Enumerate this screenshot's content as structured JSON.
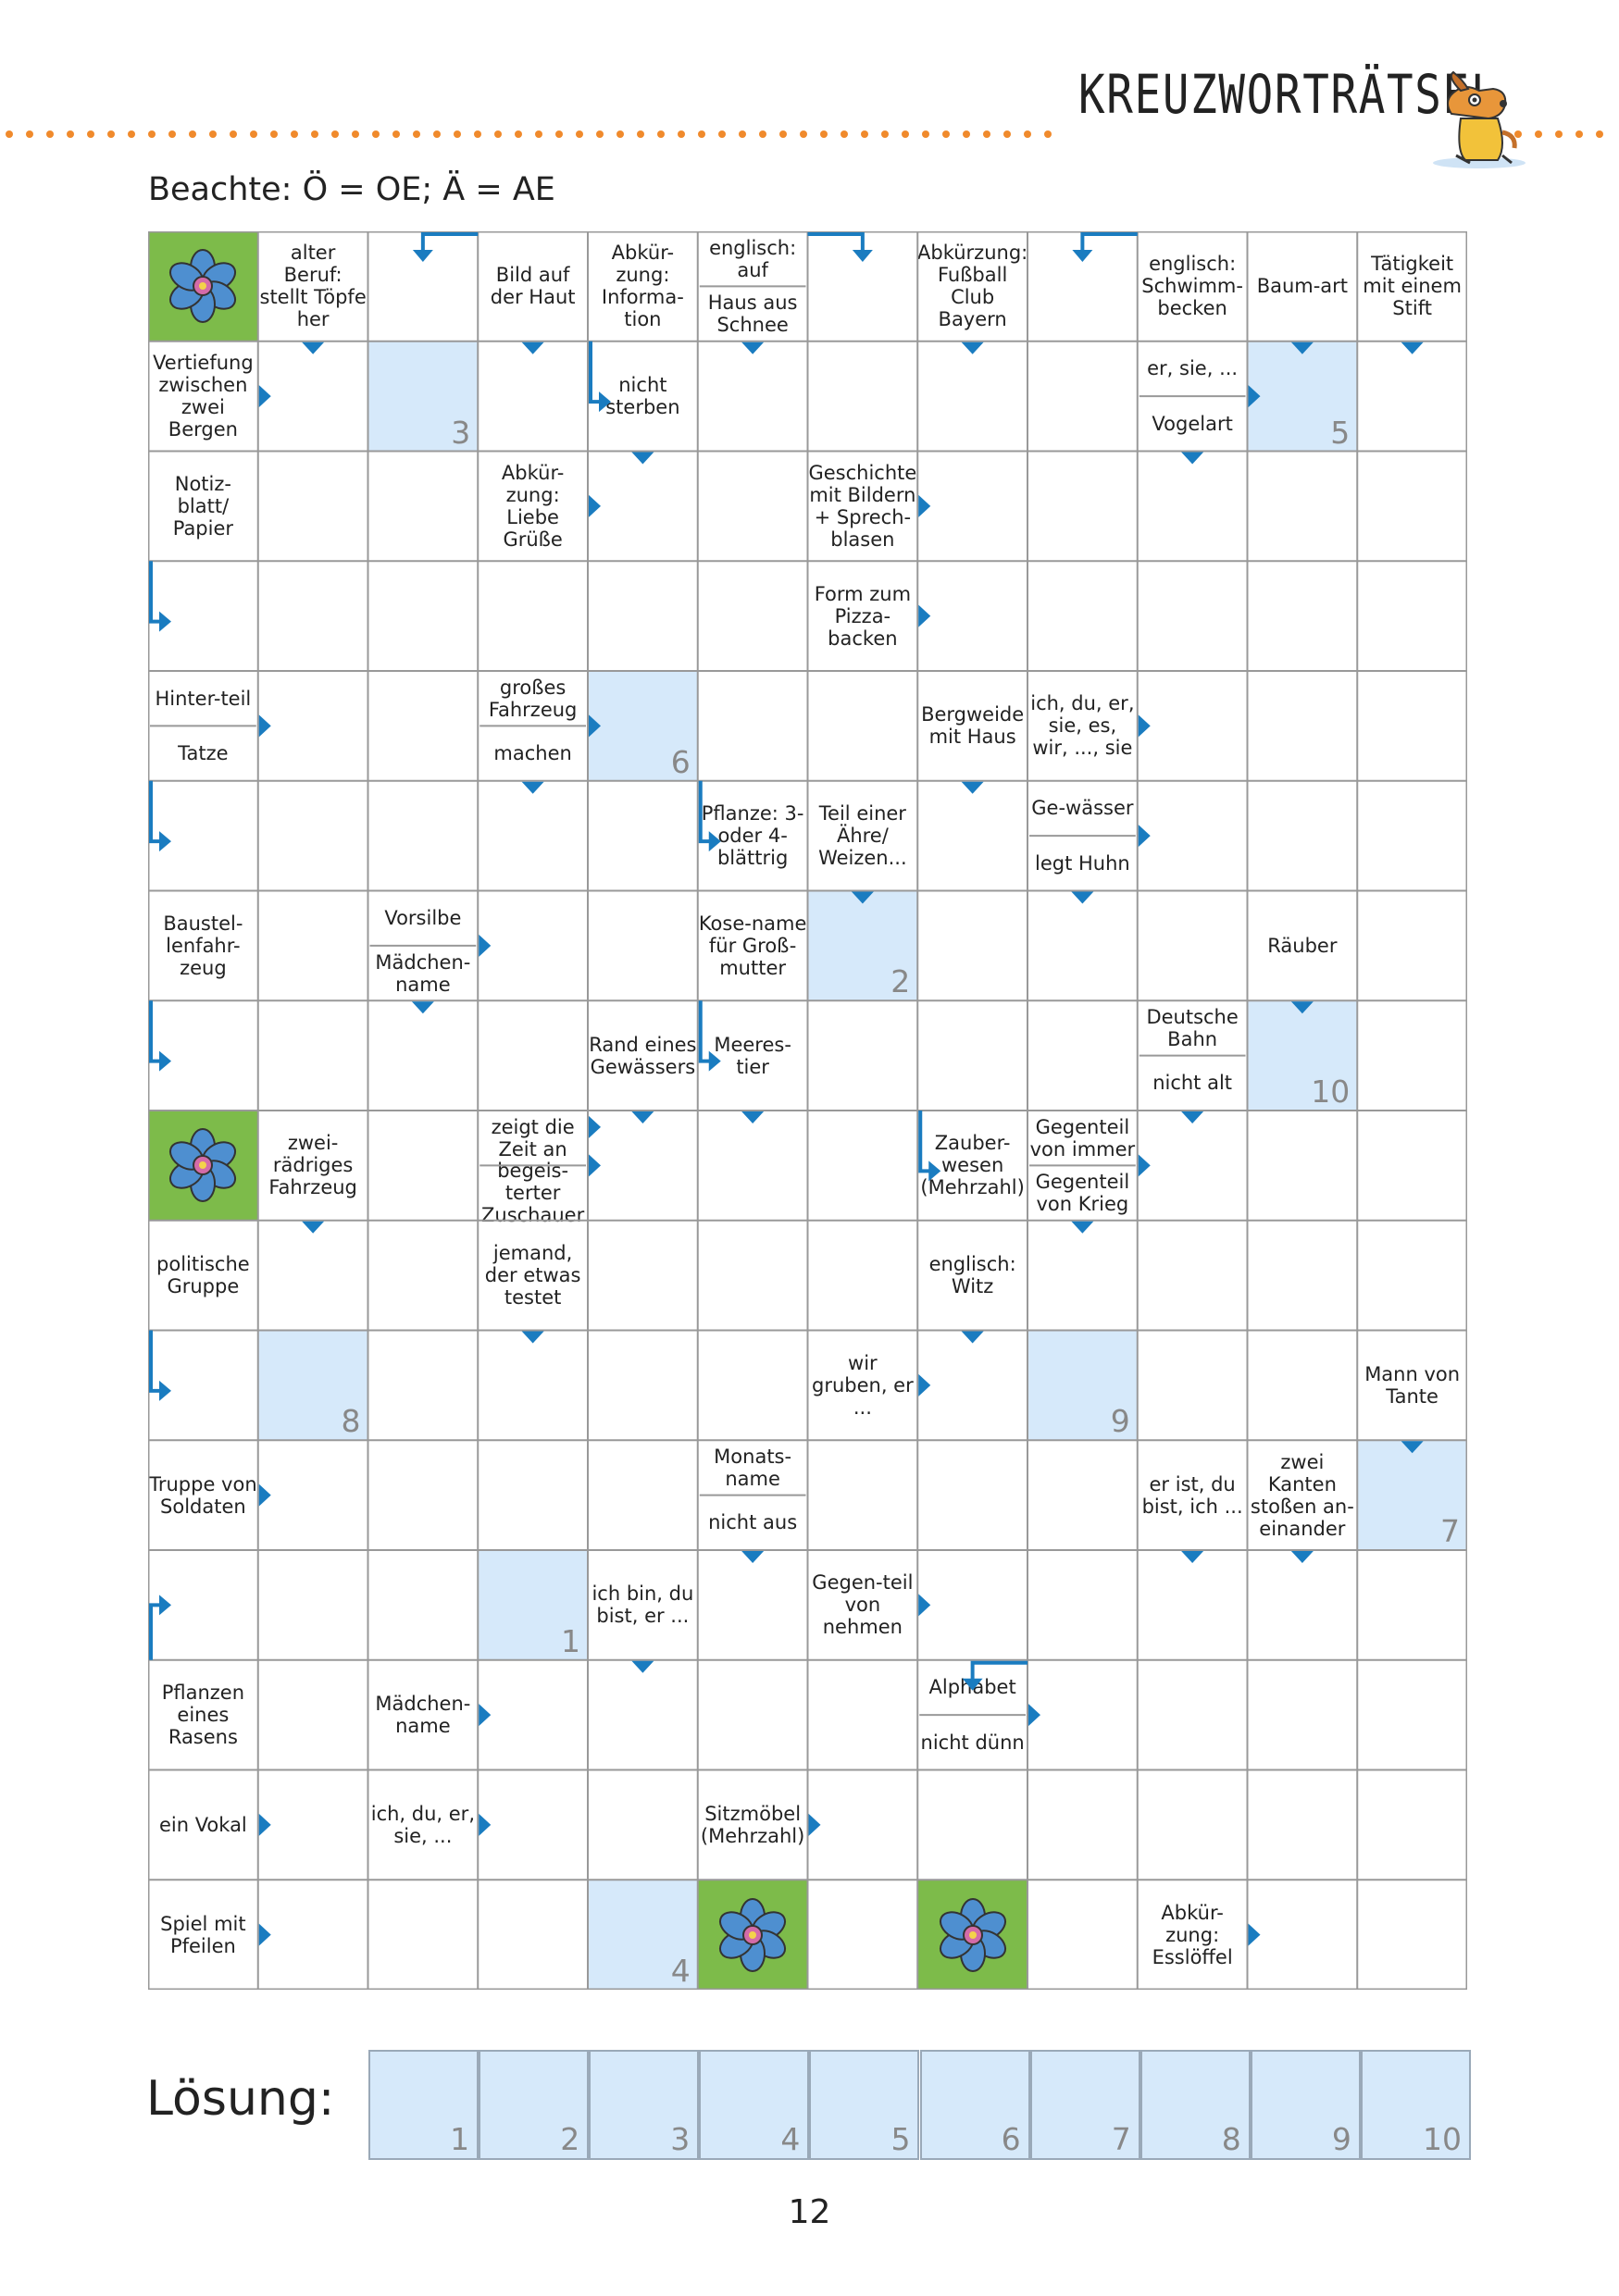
{
  "header": {
    "title": "KREUZWORTRÄTSEL",
    "dot_color": "#f08a2c",
    "mascot_icon": "dog-mascot"
  },
  "hint": "Beachte: Ö = OE; Ä = AE",
  "colors": {
    "accent": "#1a7cc0",
    "solution_fill": "#d6e9fa",
    "flower_bg": "#7dbb4a",
    "grid": "#999999"
  },
  "grid": {
    "cols": 12,
    "rows": 16,
    "flowers": [
      [
        0,
        0
      ],
      [
        8,
        0
      ],
      [
        15,
        5
      ],
      [
        15,
        7
      ]
    ],
    "clues": [
      {
        "c": 1,
        "r": 0,
        "t": "alter Beruf: stellt Töpfe her"
      },
      {
        "c": 3,
        "r": 0,
        "t": "Bild auf der Haut"
      },
      {
        "c": 4,
        "r": 0,
        "t": "Abkür-zung: Informa-tion"
      },
      {
        "c": 5,
        "r": 0,
        "t": "englisch: auf",
        "h": "top"
      },
      {
        "c": 5,
        "r": 0,
        "t": "Haus aus Schnee",
        "h": "bottom"
      },
      {
        "c": 7,
        "r": 0,
        "t": "Abkürzung: Fußball Club Bayern"
      },
      {
        "c": 9,
        "r": 0,
        "t": "englisch: Schwimm-becken"
      },
      {
        "c": 10,
        "r": 0,
        "t": "Baum-art"
      },
      {
        "c": 11,
        "r": 0,
        "t": "Tätigkeit mit einem Stift"
      },
      {
        "c": 0,
        "r": 1,
        "t": "Vertiefung zwischen zwei Bergen"
      },
      {
        "c": 4,
        "r": 1,
        "t": "nicht sterben"
      },
      {
        "c": 9,
        "r": 1,
        "t": "er, sie, ...",
        "h": "top"
      },
      {
        "c": 9,
        "r": 1,
        "t": "Vogelart",
        "h": "bottom"
      },
      {
        "c": 0,
        "r": 2,
        "t": "Notiz-blatt/ Papier"
      },
      {
        "c": 3,
        "r": 2,
        "t": "Abkür-zung: Liebe Grüße"
      },
      {
        "c": 6,
        "r": 2,
        "t": "Geschichte mit Bildern + Sprech-blasen"
      },
      {
        "c": 6,
        "r": 3,
        "t": "Form zum Pizza-backen"
      },
      {
        "c": 0,
        "r": 4,
        "t": "Hinter-teil",
        "h": "top"
      },
      {
        "c": 0,
        "r": 4,
        "t": "Tatze",
        "h": "bottom"
      },
      {
        "c": 3,
        "r": 4,
        "t": "großes Fahrzeug",
        "h": "top"
      },
      {
        "c": 3,
        "r": 4,
        "t": "machen",
        "h": "bottom"
      },
      {
        "c": 7,
        "r": 4,
        "t": "Bergweide mit Haus"
      },
      {
        "c": 8,
        "r": 4,
        "t": "ich, du, er, sie, es, wir, ..., sie"
      },
      {
        "c": 5,
        "r": 5,
        "t": "Pflanze: 3-oder 4-blättrig"
      },
      {
        "c": 6,
        "r": 5,
        "t": "Teil einer Ähre/ Weizen..."
      },
      {
        "c": 8,
        "r": 5,
        "t": "Ge-wässer",
        "h": "top"
      },
      {
        "c": 8,
        "r": 5,
        "t": "legt Huhn",
        "h": "bottom"
      },
      {
        "c": 0,
        "r": 6,
        "t": "Baustel-lenfahr-zeug"
      },
      {
        "c": 2,
        "r": 6,
        "t": "Vorsilbe",
        "h": "top"
      },
      {
        "c": 2,
        "r": 6,
        "t": "Mädchen-name",
        "h": "bottom"
      },
      {
        "c": 5,
        "r": 6,
        "t": "Kose-name für Groß-mutter"
      },
      {
        "c": 10,
        "r": 6,
        "t": "Räuber"
      },
      {
        "c": 4,
        "r": 7,
        "t": "Rand eines Gewässers"
      },
      {
        "c": 5,
        "r": 7,
        "t": "Meeres-tier"
      },
      {
        "c": 9,
        "r": 7,
        "t": "Deutsche Bahn",
        "h": "top"
      },
      {
        "c": 9,
        "r": 7,
        "t": "nicht alt",
        "h": "bottom"
      },
      {
        "c": 1,
        "r": 8,
        "t": "zwei-rädriges Fahrzeug"
      },
      {
        "c": 3,
        "r": 8,
        "t": "zeigt die Zeit an",
        "h": "top"
      },
      {
        "c": 3,
        "r": 8,
        "t": "begeis-terter Zuschauer",
        "h": "bottom"
      },
      {
        "c": 7,
        "r": 8,
        "t": "Zauber-wesen (Mehrzahl)"
      },
      {
        "c": 8,
        "r": 8,
        "t": "Gegenteil von immer",
        "h": "top"
      },
      {
        "c": 8,
        "r": 8,
        "t": "Gegenteil von Krieg",
        "h": "bottom"
      },
      {
        "c": 0,
        "r": 9,
        "t": "politische Gruppe"
      },
      {
        "c": 3,
        "r": 9,
        "t": "jemand, der etwas testet"
      },
      {
        "c": 7,
        "r": 9,
        "t": "englisch: Witz"
      },
      {
        "c": 6,
        "r": 10,
        "t": "wir gruben, er ..."
      },
      {
        "c": 11,
        "r": 10,
        "t": "Mann von Tante"
      },
      {
        "c": 0,
        "r": 11,
        "t": "Truppe von Soldaten"
      },
      {
        "c": 5,
        "r": 11,
        "t": "Monats-name",
        "h": "top"
      },
      {
        "c": 5,
        "r": 11,
        "t": "nicht aus",
        "h": "bottom"
      },
      {
        "c": 9,
        "r": 11,
        "t": "er ist, du bist, ich ..."
      },
      {
        "c": 10,
        "r": 11,
        "t": "zwei Kanten stoßen an-einander"
      },
      {
        "c": 4,
        "r": 12,
        "t": "ich bin, du bist, er ..."
      },
      {
        "c": 6,
        "r": 12,
        "t": "Gegen-teil von nehmen"
      },
      {
        "c": 0,
        "r": 13,
        "t": "Pflanzen eines Rasens"
      },
      {
        "c": 2,
        "r": 13,
        "t": "Mädchen-name"
      },
      {
        "c": 7,
        "r": 13,
        "t": "Alphabet",
        "h": "top"
      },
      {
        "c": 7,
        "r": 13,
        "t": "nicht dünn",
        "h": "bottom"
      },
      {
        "c": 0,
        "r": 14,
        "t": "ein Vokal"
      },
      {
        "c": 2,
        "r": 14,
        "t": "ich, du, er, sie, ..."
      },
      {
        "c": 5,
        "r": 14,
        "t": "Sitzmöbel (Mehrzahl)"
      },
      {
        "c": 0,
        "r": 15,
        "t": "Spiel mit Pfeilen"
      },
      {
        "c": 9,
        "r": 15,
        "t": "Abkür-zung: Esslöffel"
      }
    ],
    "solution_cells": [
      {
        "c": 2,
        "r": 1,
        "n": "3"
      },
      {
        "c": 10,
        "r": 1,
        "n": "5"
      },
      {
        "c": 4,
        "r": 4,
        "n": "6"
      },
      {
        "c": 6,
        "r": 6,
        "n": "2"
      },
      {
        "c": 10,
        "r": 7,
        "n": "10"
      },
      {
        "c": 1,
        "r": 10,
        "n": "8"
      },
      {
        "c": 8,
        "r": 10,
        "n": "9"
      },
      {
        "c": 11,
        "r": 11,
        "n": "7"
      },
      {
        "c": 3,
        "r": 12,
        "n": "1"
      },
      {
        "c": 4,
        "r": 15,
        "n": "4"
      }
    ],
    "arrows": [
      {
        "c": 1,
        "r": 0,
        "d": "down"
      },
      {
        "c": 2,
        "r": 0,
        "d": "hook-left"
      },
      {
        "c": 3,
        "r": 0,
        "d": "down"
      },
      {
        "c": 6,
        "r": 0,
        "d": "hook-right"
      },
      {
        "c": 7,
        "r": 0,
        "d": "down"
      },
      {
        "c": 8,
        "r": 0,
        "d": "hook-left"
      },
      {
        "c": 10,
        "r": 0,
        "d": "down"
      },
      {
        "c": 11,
        "r": 0,
        "d": "down"
      },
      {
        "c": 5,
        "r": 0,
        "d": "down"
      },
      {
        "c": 0,
        "r": 1,
        "d": "right"
      },
      {
        "c": 4,
        "r": 1,
        "d": "hook-down-right"
      },
      {
        "c": 9,
        "r": 1,
        "d": "right"
      },
      {
        "c": 9,
        "r": 1,
        "d": "down"
      },
      {
        "c": 4,
        "r": 1,
        "d": "down"
      },
      {
        "c": 3,
        "r": 2,
        "d": "right"
      },
      {
        "c": 6,
        "r": 2,
        "d": "right"
      },
      {
        "c": 0,
        "r": 3,
        "d": "hook-down-right"
      },
      {
        "c": 6,
        "r": 3,
        "d": "right"
      },
      {
        "c": 0,
        "r": 4,
        "d": "right"
      },
      {
        "c": 3,
        "r": 4,
        "d": "right"
      },
      {
        "c": 3,
        "r": 4,
        "d": "down"
      },
      {
        "c": 7,
        "r": 4,
        "d": "down"
      },
      {
        "c": 8,
        "r": 4,
        "d": "right"
      },
      {
        "c": 0,
        "r": 5,
        "d": "hook-down-right"
      },
      {
        "c": 8,
        "r": 5,
        "d": "right"
      },
      {
        "c": 8,
        "r": 5,
        "d": "down"
      },
      {
        "c": 5,
        "r": 5,
        "d": "hook-down-right"
      },
      {
        "c": 6,
        "r": 5,
        "d": "down"
      },
      {
        "c": 2,
        "r": 6,
        "d": "right"
      },
      {
        "c": 2,
        "r": 6,
        "d": "down"
      },
      {
        "c": 10,
        "r": 6,
        "d": "down"
      },
      {
        "c": 0,
        "r": 7,
        "d": "hook-down-right"
      },
      {
        "c": 5,
        "r": 7,
        "d": "hook-down-right"
      },
      {
        "c": 4,
        "r": 7,
        "d": "down"
      },
      {
        "c": 5,
        "r": 7,
        "d": "down"
      },
      {
        "c": 9,
        "r": 7,
        "d": "down"
      },
      {
        "c": 1,
        "r": 8,
        "d": "down"
      },
      {
        "c": 3,
        "r": 8,
        "d": "right"
      },
      {
        "c": 3,
        "r": 8,
        "d": "right2"
      },
      {
        "c": 8,
        "r": 8,
        "d": "right"
      },
      {
        "c": 8,
        "r": 8,
        "d": "down"
      },
      {
        "c": 7,
        "r": 8,
        "d": "hook-down-right"
      },
      {
        "c": 3,
        "r": 9,
        "d": "down"
      },
      {
        "c": 7,
        "r": 9,
        "d": "down"
      },
      {
        "c": 0,
        "r": 10,
        "d": "hook-down-right"
      },
      {
        "c": 6,
        "r": 10,
        "d": "right"
      },
      {
        "c": 11,
        "r": 10,
        "d": "down"
      },
      {
        "c": 0,
        "r": 11,
        "d": "right"
      },
      {
        "c": 5,
        "r": 11,
        "d": "down"
      },
      {
        "c": 9,
        "r": 11,
        "d": "down"
      },
      {
        "c": 10,
        "r": 11,
        "d": "down"
      },
      {
        "c": 0,
        "r": 12,
        "d": "hook-up-right"
      },
      {
        "c": 4,
        "r": 12,
        "d": "down"
      },
      {
        "c": 6,
        "r": 12,
        "d": "right"
      },
      {
        "c": 2,
        "r": 13,
        "d": "right"
      },
      {
        "c": 7,
        "r": 13,
        "d": "hook-left"
      },
      {
        "c": 7,
        "r": 13,
        "d": "right"
      },
      {
        "c": 0,
        "r": 14,
        "d": "right"
      },
      {
        "c": 2,
        "r": 14,
        "d": "right"
      },
      {
        "c": 5,
        "r": 14,
        "d": "right"
      },
      {
        "c": 0,
        "r": 15,
        "d": "right"
      },
      {
        "c": 9,
        "r": 15,
        "d": "right"
      }
    ]
  },
  "loesung": {
    "label": "Lösung:",
    "numbers": [
      "1",
      "2",
      "3",
      "4",
      "5",
      "6",
      "7",
      "8",
      "9",
      "10"
    ]
  },
  "page_number": "12"
}
